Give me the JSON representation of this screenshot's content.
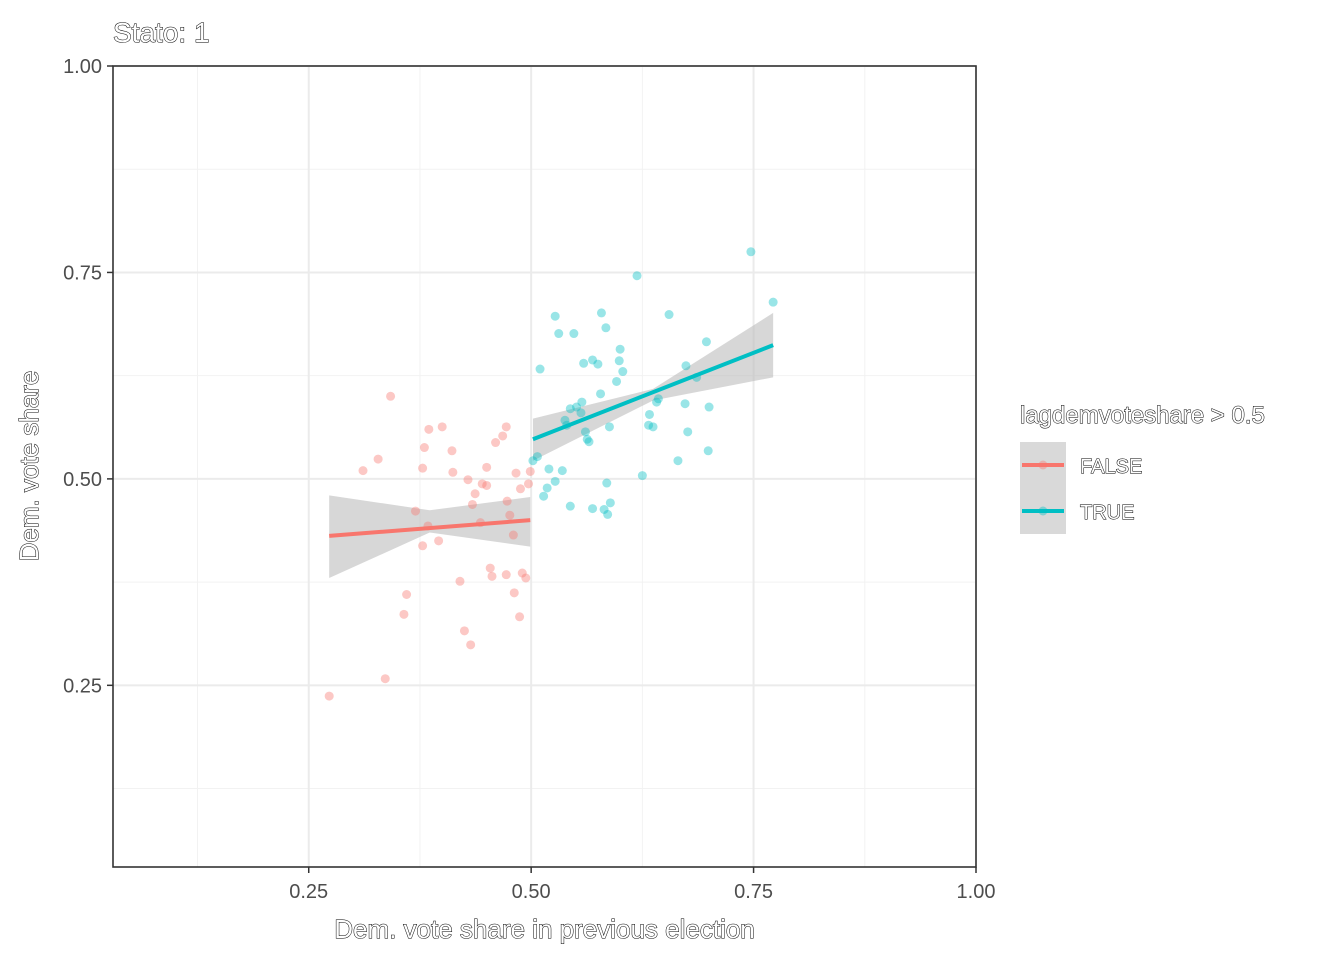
{
  "chart_data": {
    "type": "scatter",
    "title": "Stato: 1",
    "xlabel": "Dem. vote share in previous election",
    "ylabel": "Dem. vote share",
    "xlim": [
      0.03,
      1.0
    ],
    "ylim": [
      0.03,
      1.0
    ],
    "x_ticks": [
      {
        "value": 0.25,
        "label": "0.25"
      },
      {
        "value": 0.5,
        "label": "0.50"
      },
      {
        "value": 0.75,
        "label": "0.75"
      },
      {
        "value": 1.0,
        "label": "1.00"
      }
    ],
    "y_ticks": [
      {
        "value": 0.25,
        "label": "0.25"
      },
      {
        "value": 0.5,
        "label": "0.50"
      },
      {
        "value": 0.75,
        "label": "0.75"
      },
      {
        "value": 1.0,
        "label": "1.00"
      }
    ],
    "x_minor_ticks": [
      0.125,
      0.375,
      0.625,
      0.875
    ],
    "y_minor_ticks": [
      0.125,
      0.375,
      0.625,
      0.875
    ],
    "grid": true,
    "legend": {
      "title": "lagdemvoteshare > 0.5",
      "position": "right",
      "entries": [
        "FALSE",
        "TRUE"
      ]
    },
    "series": [
      {
        "name": "FALSE",
        "color": "#F8766D",
        "points": [
          [
            0.273,
            0.237
          ],
          [
            0.311,
            0.51
          ],
          [
            0.328,
            0.524
          ],
          [
            0.336,
            0.258
          ],
          [
            0.342,
            0.6
          ],
          [
            0.357,
            0.336
          ],
          [
            0.36,
            0.36
          ],
          [
            0.37,
            0.461
          ],
          [
            0.378,
            0.513
          ],
          [
            0.378,
            0.419
          ],
          [
            0.38,
            0.538
          ],
          [
            0.384,
            0.443
          ],
          [
            0.385,
            0.56
          ],
          [
            0.396,
            0.425
          ],
          [
            0.4,
            0.563
          ],
          [
            0.411,
            0.534
          ],
          [
            0.412,
            0.508
          ],
          [
            0.42,
            0.376
          ],
          [
            0.425,
            0.316
          ],
          [
            0.429,
            0.499
          ],
          [
            0.432,
            0.299
          ],
          [
            0.434,
            0.469
          ],
          [
            0.437,
            0.482
          ],
          [
            0.443,
            0.447
          ],
          [
            0.445,
            0.494
          ],
          [
            0.45,
            0.492
          ],
          [
            0.45,
            0.514
          ],
          [
            0.454,
            0.392
          ],
          [
            0.456,
            0.382
          ],
          [
            0.46,
            0.544
          ],
          [
            0.468,
            0.552
          ],
          [
            0.472,
            0.563
          ],
          [
            0.472,
            0.384
          ],
          [
            0.473,
            0.473
          ],
          [
            0.476,
            0.456
          ],
          [
            0.48,
            0.432
          ],
          [
            0.481,
            0.362
          ],
          [
            0.483,
            0.507
          ],
          [
            0.487,
            0.333
          ],
          [
            0.488,
            0.488
          ],
          [
            0.49,
            0.386
          ],
          [
            0.494,
            0.38
          ],
          [
            0.497,
            0.494
          ],
          [
            0.499,
            0.509
          ]
        ],
        "fit": {
          "x": [
            0.273,
            0.499
          ],
          "y": [
            0.431,
            0.45
          ]
        },
        "ci_lower": [
          0.38,
          0.435,
          0.418
        ],
        "ci_upper": [
          0.48,
          0.462,
          0.478
        ]
      },
      {
        "name": "TRUE",
        "color": "#00BFC4",
        "points": [
          [
            0.502,
            0.522
          ],
          [
            0.507,
            0.527
          ],
          [
            0.51,
            0.633
          ],
          [
            0.514,
            0.479
          ],
          [
            0.518,
            0.489
          ],
          [
            0.52,
            0.512
          ],
          [
            0.527,
            0.497
          ],
          [
            0.527,
            0.697
          ],
          [
            0.531,
            0.676
          ],
          [
            0.535,
            0.51
          ],
          [
            0.538,
            0.571
          ],
          [
            0.54,
            0.565
          ],
          [
            0.544,
            0.585
          ],
          [
            0.544,
            0.467
          ],
          [
            0.548,
            0.676
          ],
          [
            0.551,
            0.587
          ],
          [
            0.556,
            0.58
          ],
          [
            0.557,
            0.593
          ],
          [
            0.559,
            0.64
          ],
          [
            0.561,
            0.557
          ],
          [
            0.563,
            0.548
          ],
          [
            0.565,
            0.545
          ],
          [
            0.569,
            0.644
          ],
          [
            0.569,
            0.464
          ],
          [
            0.575,
            0.639
          ],
          [
            0.578,
            0.603
          ],
          [
            0.579,
            0.701
          ],
          [
            0.582,
            0.463
          ],
          [
            0.584,
            0.683
          ],
          [
            0.585,
            0.495
          ],
          [
            0.586,
            0.457
          ],
          [
            0.588,
            0.563
          ],
          [
            0.589,
            0.471
          ],
          [
            0.596,
            0.618
          ],
          [
            0.599,
            0.643
          ],
          [
            0.6,
            0.657
          ],
          [
            0.603,
            0.63
          ],
          [
            0.619,
            0.746
          ],
          [
            0.625,
            0.504
          ],
          [
            0.632,
            0.565
          ],
          [
            0.633,
            0.578
          ],
          [
            0.637,
            0.563
          ],
          [
            0.641,
            0.593
          ],
          [
            0.643,
            0.597
          ],
          [
            0.655,
            0.699
          ],
          [
            0.665,
            0.522
          ],
          [
            0.673,
            0.591
          ],
          [
            0.674,
            0.637
          ],
          [
            0.676,
            0.557
          ],
          [
            0.686,
            0.623
          ],
          [
            0.697,
            0.666
          ],
          [
            0.699,
            0.534
          ],
          [
            0.7,
            0.587
          ],
          [
            0.747,
            0.775
          ],
          [
            0.772,
            0.714
          ]
        ],
        "fit": {
          "x": [
            0.502,
            0.772
          ],
          "y": [
            0.548,
            0.662
          ]
        },
        "ci_lower": [
          0.522,
          0.595,
          0.623
        ],
        "ci_upper": [
          0.573,
          0.609,
          0.701
        ]
      }
    ]
  }
}
